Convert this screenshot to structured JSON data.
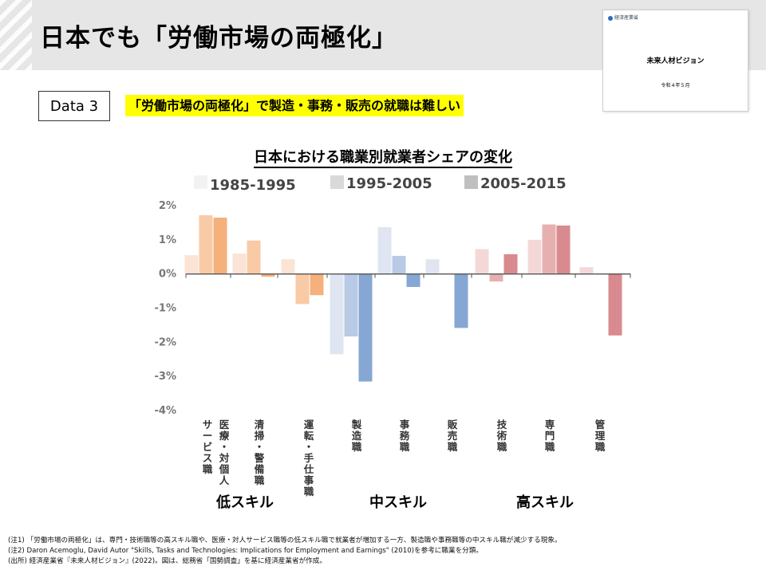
{
  "page": {
    "title": "日本でも「労働市場の両極化」",
    "data_label": "Data 3",
    "headline": "「労働市場の両極化」で製造・事務・販売の就職は難しい"
  },
  "thumbnail": {
    "org": "経済産業省",
    "title": "未来人材ビジョン",
    "date": "令和４年５月"
  },
  "footnotes": [
    "(注1) 「労働市場の両極化」は、専門・技術職等の高スキル職や、医療・対人サービス職等の低スキル職で就業者が増加する一方、製造職や事務職等の中スキル職が減少する現象。",
    "(注2) Daron Acemoglu, David Autor \"Skills, Tasks and Technologies: Implications for Employment and Earnings\" (2010)を参考に職業を分類。",
    "(出所) 経済産業省『未来人材ビジョン』(2022)。図は、総務省「国勢調査」を基に経済産業省が作成。"
  ],
  "chart_data": {
    "type": "bar",
    "title": "日本における職業別就業者シェアの変化",
    "ylim": [
      -4,
      2
    ],
    "yticks": [
      "2%",
      "1%",
      "0%",
      "-1%",
      "-2%",
      "-3%",
      "-4%"
    ],
    "legend": [
      "1985-1995",
      "1995-2005",
      "2005-2015"
    ],
    "categories": [
      "医療・対個人サービス職",
      "清掃・警備職",
      "運転・手仕事職",
      "製造職",
      "事務職",
      "販売職",
      "技術職",
      "専門職",
      "管理職"
    ],
    "category_labels": [
      [
        "医療・対個人",
        "サービス職"
      ],
      [
        "清掃・警備職"
      ],
      [
        "運転・手仕事職"
      ],
      [
        "製造職"
      ],
      [
        "事務職"
      ],
      [
        "販売職"
      ],
      [
        "技術職"
      ],
      [
        "専門職"
      ],
      [
        "管理職"
      ]
    ],
    "series": [
      {
        "name": "1985-1995",
        "values": [
          0.55,
          0.6,
          0.43,
          -2.35,
          1.37,
          0.43,
          0.73,
          1.0,
          0.2
        ]
      },
      {
        "name": "1995-2005",
        "values": [
          1.72,
          0.98,
          -0.88,
          -1.83,
          0.53,
          0.0,
          -0.22,
          1.45,
          0.0
        ]
      },
      {
        "name": "2005-2015",
        "values": [
          1.65,
          -0.08,
          -0.62,
          -3.15,
          -0.38,
          -1.58,
          0.58,
          1.42,
          -1.8
        ]
      }
    ],
    "skill_groups": [
      {
        "label": "低スキル",
        "span": [
          0,
          2
        ]
      },
      {
        "label": "中スキル",
        "span": [
          3,
          5
        ]
      },
      {
        "label": "高スキル",
        "span": [
          6,
          8
        ]
      }
    ],
    "group_colors": {
      "low": [
        "#fbe3d5",
        "#f9caa6",
        "#f5b07c"
      ],
      "mid": [
        "#dfe6f2",
        "#b8cae5",
        "#86a7d3"
      ],
      "high": [
        "#f4d8d8",
        "#e7b0b0",
        "#d98a8f"
      ]
    },
    "legend_colors": [
      "#f2f2f2",
      "#d9d9d9",
      "#bfbfbf"
    ]
  }
}
